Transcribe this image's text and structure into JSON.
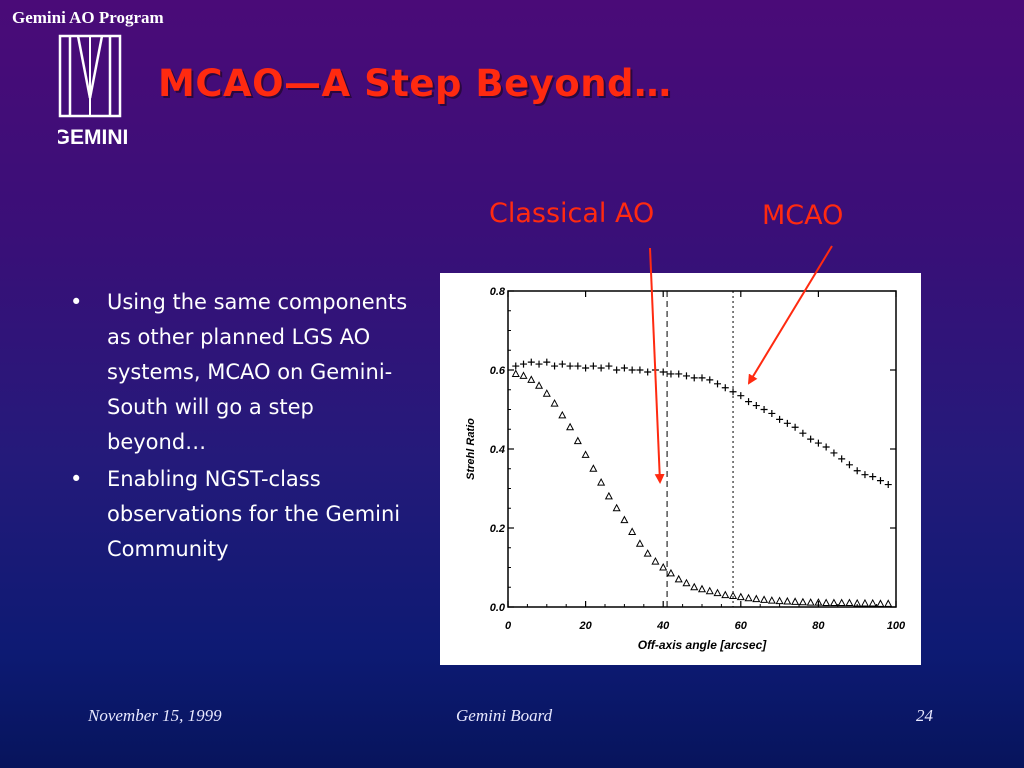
{
  "header": {
    "program": "Gemini AO Program",
    "logo_text": "GEMINI",
    "title": "MCAO—A Step Beyond…"
  },
  "labels": {
    "classical": "Classical AO",
    "mcao": "MCAO"
  },
  "bullets": [
    {
      "marker": "•",
      "text": "Using the same components as other planned LGS AO systems,  MCAO on Gemini-South will go a step beyond…"
    },
    {
      "marker": "•",
      "text": "Enabling NGST-class observations for the Gemini Community"
    }
  ],
  "footer": {
    "date": "November 15, 1999",
    "center": "Gemini Board",
    "page": "24"
  },
  "colors": {
    "accent": "#ff2a10",
    "marker": "#000000"
  },
  "chart_data": {
    "type": "scatter",
    "xlabel": "Off-axis angle [arcsec]",
    "ylabel": "Strehl Ratio",
    "xlim": [
      0,
      100
    ],
    "ylim": [
      0,
      0.8
    ],
    "x_ticks": [
      "0",
      "20",
      "40",
      "60",
      "80",
      "100"
    ],
    "y_ticks": [
      "0.0",
      "0.2",
      "0.4",
      "0.6",
      "0.8"
    ],
    "vlines": [
      {
        "x": 41,
        "style": "dashed"
      },
      {
        "x": 58,
        "style": "dotted"
      }
    ],
    "series": [
      {
        "marker": "plus",
        "points": [
          [
            2,
            0.61
          ],
          [
            4,
            0.615
          ],
          [
            6,
            0.62
          ],
          [
            8,
            0.615
          ],
          [
            10,
            0.62
          ],
          [
            12,
            0.61
          ],
          [
            14,
            0.615
          ],
          [
            16,
            0.61
          ],
          [
            18,
            0.61
          ],
          [
            20,
            0.605
          ],
          [
            22,
            0.61
          ],
          [
            24,
            0.605
          ],
          [
            26,
            0.61
          ],
          [
            28,
            0.6
          ],
          [
            30,
            0.605
          ],
          [
            32,
            0.6
          ],
          [
            34,
            0.6
          ],
          [
            36,
            0.595
          ],
          [
            38,
            0.6
          ],
          [
            40,
            0.595
          ],
          [
            42,
            0.59
          ],
          [
            44,
            0.59
          ],
          [
            46,
            0.585
          ],
          [
            48,
            0.58
          ],
          [
            50,
            0.58
          ],
          [
            52,
            0.575
          ],
          [
            54,
            0.565
          ],
          [
            56,
            0.555
          ],
          [
            58,
            0.545
          ],
          [
            60,
            0.535
          ],
          [
            62,
            0.52
          ],
          [
            64,
            0.51
          ],
          [
            66,
            0.5
          ],
          [
            68,
            0.49
          ],
          [
            70,
            0.475
          ],
          [
            72,
            0.465
          ],
          [
            74,
            0.455
          ],
          [
            76,
            0.44
          ],
          [
            78,
            0.425
          ],
          [
            80,
            0.415
          ],
          [
            82,
            0.405
          ],
          [
            84,
            0.39
          ],
          [
            86,
            0.375
          ],
          [
            88,
            0.36
          ],
          [
            90,
            0.345
          ],
          [
            92,
            0.335
          ],
          [
            94,
            0.33
          ],
          [
            96,
            0.32
          ],
          [
            98,
            0.31
          ]
        ]
      },
      {
        "marker": "triangle",
        "points": [
          [
            2,
            0.59
          ],
          [
            4,
            0.585
          ],
          [
            6,
            0.575
          ],
          [
            8,
            0.56
          ],
          [
            10,
            0.54
          ],
          [
            12,
            0.515
          ],
          [
            14,
            0.485
          ],
          [
            16,
            0.455
          ],
          [
            18,
            0.42
          ],
          [
            20,
            0.385
          ],
          [
            22,
            0.35
          ],
          [
            24,
            0.315
          ],
          [
            26,
            0.28
          ],
          [
            28,
            0.25
          ],
          [
            30,
            0.22
          ],
          [
            32,
            0.19
          ],
          [
            34,
            0.16
          ],
          [
            36,
            0.135
          ],
          [
            38,
            0.115
          ],
          [
            40,
            0.1
          ],
          [
            42,
            0.085
          ],
          [
            44,
            0.07
          ],
          [
            46,
            0.06
          ],
          [
            48,
            0.05
          ],
          [
            50,
            0.045
          ],
          [
            52,
            0.04
          ],
          [
            54,
            0.035
          ],
          [
            56,
            0.03
          ],
          [
            58,
            0.028
          ],
          [
            60,
            0.025
          ],
          [
            62,
            0.022
          ],
          [
            64,
            0.02
          ],
          [
            66,
            0.018
          ],
          [
            68,
            0.016
          ],
          [
            70,
            0.015
          ],
          [
            72,
            0.014
          ],
          [
            74,
            0.013
          ],
          [
            76,
            0.012
          ],
          [
            78,
            0.011
          ],
          [
            80,
            0.011
          ],
          [
            82,
            0.01
          ],
          [
            84,
            0.01
          ],
          [
            86,
            0.01
          ],
          [
            88,
            0.01
          ],
          [
            90,
            0.009
          ],
          [
            92,
            0.009
          ],
          [
            94,
            0.009
          ],
          [
            96,
            0.008
          ],
          [
            98,
            0.008
          ]
        ]
      }
    ]
  }
}
